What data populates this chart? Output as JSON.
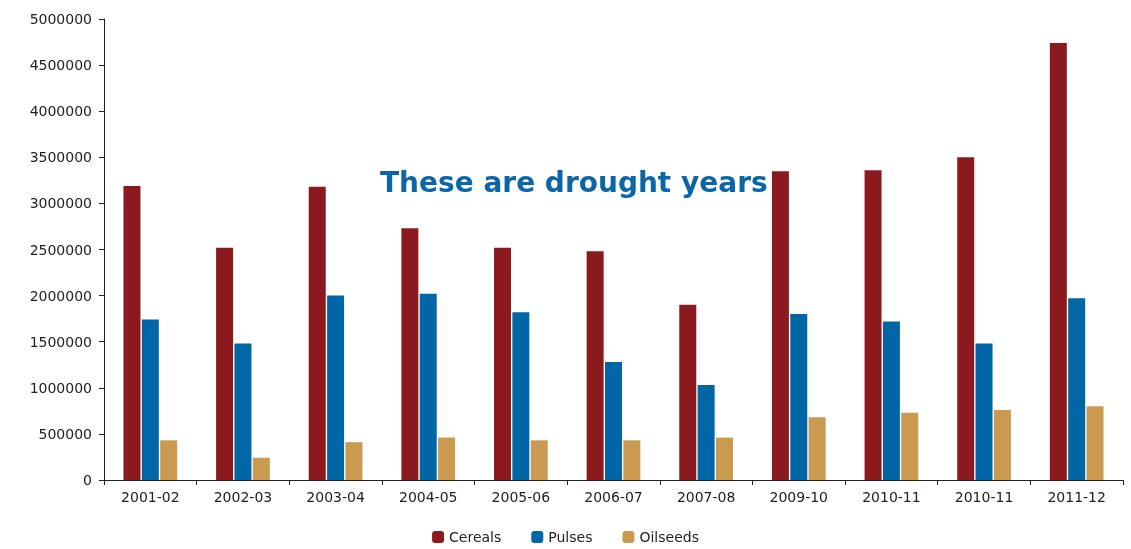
{
  "chart_data": {
    "type": "bar",
    "categories": [
      "2001-02",
      "2002-03",
      "2003-04",
      "2004-05",
      "2005-06",
      "2006-07",
      "2007-08",
      "2009-10",
      "2010-11",
      "2010-11",
      "2011-12"
    ],
    "series": [
      {
        "name": "Cereals",
        "color": "#8b1a1e",
        "values": [
          3190000,
          2520000,
          3180000,
          2730000,
          2520000,
          2480000,
          1900000,
          3350000,
          3360000,
          3500000,
          4740000
        ]
      },
      {
        "name": "Pulses",
        "color": "#0066a6",
        "values": [
          1740000,
          1480000,
          2000000,
          2020000,
          1820000,
          1280000,
          1030000,
          1800000,
          1720000,
          1480000,
          1970000
        ]
      },
      {
        "name": "Oilseeds",
        "color": "#c99a4f",
        "values": [
          430000,
          240000,
          410000,
          460000,
          430000,
          430000,
          460000,
          680000,
          730000,
          760000,
          800000
        ]
      }
    ],
    "ylim": [
      0,
      5000000
    ],
    "yticks": [
      0,
      500000,
      1000000,
      1500000,
      2000000,
      2500000,
      3000000,
      3500000,
      4000000,
      4500000,
      5000000
    ],
    "grid": false,
    "legend": "bottom",
    "annotations": [
      "These are drought years"
    ]
  }
}
